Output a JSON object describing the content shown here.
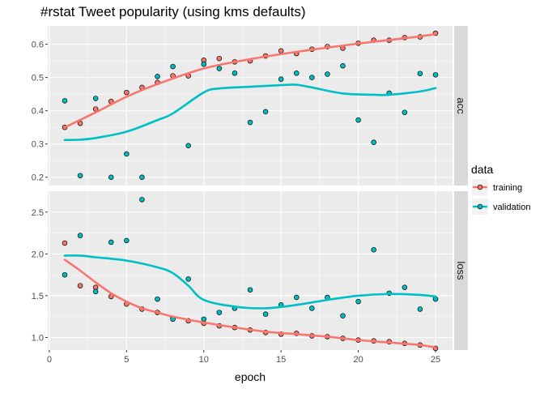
{
  "chart_data": {
    "type": "scatter",
    "title": "#rstat Tweet popularity (using kms defaults)",
    "xlabel": "epoch",
    "x_ticks": [
      0,
      5,
      10,
      15,
      20,
      25
    ],
    "xlim": [
      -0.1,
      26.1
    ],
    "legend": {
      "title": "data",
      "position": "right",
      "entries": [
        "training",
        "validation"
      ]
    },
    "colors": {
      "training": "#F8766D",
      "validation": "#00BFC4",
      "panel": "#EBEBEB",
      "grid": "#FFFFFF",
      "strip": "#D9D9D9"
    },
    "grid": true,
    "facets": [
      {
        "label": "acc",
        "ylim": [
          0.175,
          0.655
        ],
        "y_ticks": [
          0.2,
          0.3,
          0.4,
          0.5,
          0.6
        ],
        "y_tick_labels": [
          "0.2",
          "0.3",
          "0.4",
          "0.5",
          "0.6"
        ],
        "series": [
          {
            "name": "training",
            "x": [
              1,
              2,
              3,
              4,
              5,
              6,
              7,
              8,
              9,
              10,
              11,
              12,
              13,
              14,
              15,
              16,
              17,
              18,
              19,
              20,
              21,
              22,
              23,
              24,
              25
            ],
            "y": [
              0.35,
              0.362,
              0.405,
              0.428,
              0.455,
              0.47,
              0.485,
              0.505,
              0.505,
              0.552,
              0.557,
              0.547,
              0.55,
              0.565,
              0.58,
              0.572,
              0.585,
              0.593,
              0.588,
              0.603,
              0.612,
              0.612,
              0.62,
              0.622,
              0.633
            ],
            "smooth": [
              [
                1,
                0.35
              ],
              [
                3,
                0.395
              ],
              [
                5,
                0.442
              ],
              [
                7,
                0.48
              ],
              [
                10,
                0.527
              ],
              [
                13,
                0.555
              ],
              [
                16,
                0.577
              ],
              [
                20,
                0.602
              ],
              [
                23,
                0.618
              ],
              [
                25,
                0.63
              ]
            ]
          },
          {
            "name": "validation",
            "x": [
              1,
              2,
              3,
              4,
              5,
              6,
              7,
              8,
              9,
              10,
              11,
              12,
              13,
              14,
              15,
              16,
              17,
              18,
              19,
              20,
              21,
              22,
              23,
              24,
              25
            ],
            "y": [
              0.43,
              0.205,
              0.437,
              0.2,
              0.27,
              0.2,
              0.503,
              0.533,
              0.295,
              0.54,
              0.527,
              0.513,
              0.365,
              0.397,
              0.495,
              0.513,
              0.5,
              0.51,
              0.535,
              0.372,
              0.305,
              0.453,
              0.395,
              0.512,
              0.508
            ],
            "smooth": [
              [
                1,
                0.312
              ],
              [
                2,
                0.313
              ],
              [
                3,
                0.318
              ],
              [
                5,
                0.337
              ],
              [
                7,
                0.372
              ],
              [
                8,
                0.392
              ],
              [
                10,
                0.455
              ],
              [
                11,
                0.467
              ],
              [
                13,
                0.472
              ],
              [
                15,
                0.477
              ],
              [
                16,
                0.478
              ],
              [
                17,
                0.47
              ],
              [
                19,
                0.452
              ],
              [
                21,
                0.448
              ],
              [
                22,
                0.448
              ],
              [
                24,
                0.458
              ],
              [
                25,
                0.468
              ]
            ]
          }
        ]
      },
      {
        "label": "loss",
        "ylim": [
          0.85,
          2.75
        ],
        "y_ticks": [
          1.0,
          1.5,
          2.0,
          2.5
        ],
        "y_tick_labels": [
          "1.0",
          "1.5",
          "2.0",
          "2.5"
        ],
        "series": [
          {
            "name": "training",
            "x": [
              1,
              2,
              3,
              4,
              5,
              6,
              7,
              8,
              9,
              10,
              11,
              12,
              13,
              14,
              15,
              16,
              17,
              18,
              19,
              20,
              21,
              22,
              23,
              24,
              25
            ],
            "y": [
              2.13,
              1.62,
              1.6,
              1.49,
              1.4,
              1.34,
              1.3,
              1.23,
              1.2,
              1.17,
              1.14,
              1.12,
              1.09,
              1.06,
              1.04,
              1.05,
              1.02,
              1.01,
              0.99,
              0.97,
              0.96,
              0.95,
              0.93,
              0.91,
              0.87
            ],
            "smooth": [
              [
                1,
                1.93
              ],
              [
                2,
                1.8
              ],
              [
                3,
                1.66
              ],
              [
                4,
                1.53
              ],
              [
                5,
                1.43
              ],
              [
                6,
                1.35
              ],
              [
                7,
                1.3
              ],
              [
                8,
                1.25
              ],
              [
                10,
                1.18
              ],
              [
                12,
                1.12
              ],
              [
                14,
                1.07
              ],
              [
                16,
                1.04
              ],
              [
                18,
                1.01
              ],
              [
                20,
                0.97
              ],
              [
                22,
                0.94
              ],
              [
                24,
                0.91
              ],
              [
                25,
                0.88
              ]
            ]
          },
          {
            "name": "validation",
            "x": [
              1,
              2,
              3,
              4,
              5,
              6,
              7,
              8,
              9,
              10,
              11,
              12,
              13,
              14,
              15,
              16,
              17,
              18,
              19,
              20,
              21,
              22,
              23,
              24,
              25
            ],
            "y": [
              1.75,
              2.22,
              1.55,
              2.14,
              2.16,
              2.65,
              1.46,
              1.22,
              1.7,
              1.22,
              1.3,
              1.35,
              1.57,
              1.28,
              1.39,
              1.48,
              1.35,
              1.48,
              1.26,
              1.43,
              2.05,
              1.53,
              1.6,
              1.34,
              1.46
            ],
            "smooth": [
              [
                1,
                1.98
              ],
              [
                2,
                1.98
              ],
              [
                3,
                1.96
              ],
              [
                5,
                1.92
              ],
              [
                7,
                1.84
              ],
              [
                8,
                1.77
              ],
              [
                9,
                1.62
              ],
              [
                10,
                1.45
              ],
              [
                12,
                1.37
              ],
              [
                14,
                1.35
              ],
              [
                16,
                1.39
              ],
              [
                18,
                1.45
              ],
              [
                20,
                1.5
              ],
              [
                22,
                1.52
              ],
              [
                24,
                1.51
              ],
              [
                25,
                1.49
              ]
            ]
          }
        ]
      }
    ]
  }
}
